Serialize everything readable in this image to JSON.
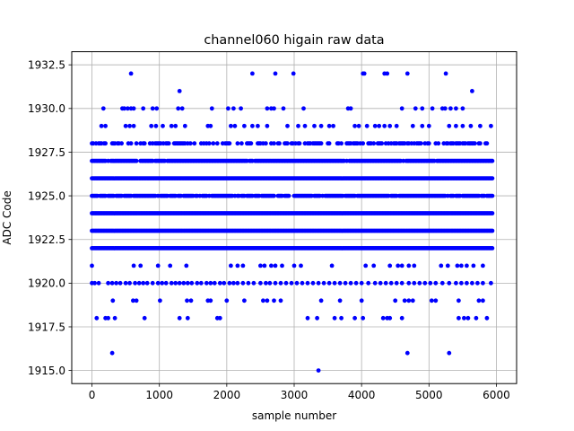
{
  "chart_data": {
    "type": "scatter",
    "title": "channel060 higain raw data",
    "xlabel": "sample number",
    "ylabel": "ADC Code",
    "xlim": [
      -300,
      6300
    ],
    "ylim": [
      1914.25,
      1933.25
    ],
    "xticks": [
      0,
      1000,
      2000,
      3000,
      4000,
      5000,
      6000
    ],
    "xtick_labels": [
      "0",
      "1000",
      "2000",
      "3000",
      "4000",
      "5000",
      "6000"
    ],
    "yticks": [
      1915.0,
      1917.5,
      1920.0,
      1922.5,
      1925.0,
      1927.5,
      1930.0,
      1932.5
    ],
    "ytick_labels": [
      "1915.0",
      "1917.5",
      "1920.0",
      "1922.5",
      "1925.0",
      "1927.5",
      "1930.0",
      "1932.5"
    ],
    "grid": true,
    "color": "#0000ff",
    "marker": "circle",
    "x_range": [
      0,
      5950
    ],
    "note_dense_bands": [
      1922,
      1923,
      1924,
      1925,
      1926,
      1927
    ],
    "dense_series": [
      {
        "y": 1922,
        "density": 1.0
      },
      {
        "y": 1923,
        "density": 1.0
      },
      {
        "y": 1924,
        "density": 1.0
      },
      {
        "y": 1925,
        "density": 0.85
      },
      {
        "y": 1926,
        "density": 1.0
      },
      {
        "y": 1927,
        "density": 0.95
      },
      {
        "y": 1928,
        "density": 0.55
      }
    ],
    "sparse_points": {
      "1932": [
        580,
        2380,
        2720,
        2990,
        4020,
        4040,
        4340,
        4380,
        4680,
        5250
      ],
      "1931": [
        1300,
        5640
      ],
      "1930": [
        170,
        450,
        480,
        530,
        580,
        620,
        760,
        900,
        960,
        1280,
        1340,
        1780,
        2020,
        2100,
        2210,
        2600,
        2660,
        2700,
        2840,
        3140,
        3800,
        3840,
        4600,
        4800,
        4900,
        5050,
        5200,
        5240,
        5320,
        5400,
        5500
      ],
      "1929": [
        140,
        200,
        500,
        560,
        620,
        880,
        950,
        1050,
        1180,
        1240,
        1380,
        1720,
        1760,
        2060,
        2120,
        2260,
        2380,
        2460,
        2600,
        2900,
        3060,
        3160,
        3300,
        3400,
        3520,
        3580,
        3900,
        3960,
        4080,
        4200,
        4260,
        4340,
        4420,
        4520,
        4760,
        4900,
        5000,
        5300,
        5400,
        5500,
        5620,
        5760,
        5920
      ],
      "1921": [
        0,
        620,
        720,
        980,
        1160,
        1400,
        2060,
        2160,
        2240,
        2500,
        2560,
        2660,
        2720,
        2820,
        3000,
        3100,
        3560,
        4060,
        4180,
        4420,
        4540,
        4600,
        4700,
        4780,
        5180,
        5280,
        5420,
        5480,
        5560,
        5660,
        5800
      ],
      "1920": [
        0,
        40,
        100,
        240,
        300,
        360,
        420,
        500,
        560,
        640,
        700,
        760,
        820,
        900,
        980,
        1040,
        1100,
        1180,
        1240,
        1300,
        1360,
        1420,
        1480,
        1560,
        1620,
        1700,
        1760,
        1820,
        1900,
        1960,
        2040,
        2100,
        2160,
        2240,
        2320,
        2400,
        2500,
        2580,
        2640,
        2720,
        2800,
        2880,
        2960,
        3040,
        3120,
        3200,
        3280,
        3360,
        3440,
        3520,
        3600,
        3680,
        3760,
        3840,
        3920,
        4000,
        4100,
        4200,
        4280,
        4360,
        4440,
        4520,
        4600,
        4700,
        4780,
        4860,
        4940,
        5020,
        5100,
        5200,
        5300,
        5400,
        5480,
        5560,
        5640,
        5720,
        5800,
        5920
      ],
      "1919": [
        310,
        610,
        660,
        1010,
        1410,
        1470,
        1720,
        1760,
        2000,
        2260,
        2540,
        2600,
        2700,
        2800,
        3400,
        3680,
        4000,
        4500,
        4640,
        4700,
        4760,
        5040,
        5100,
        5440,
        5740,
        5800
      ],
      "1918": [
        70,
        200,
        240,
        340,
        780,
        1300,
        1420,
        1860,
        1900,
        3200,
        3340,
        3600,
        3700,
        3900,
        4020,
        4320,
        4380,
        4420,
        4600,
        5440,
        5520,
        5580,
        5700,
        5860
      ],
      "1916": [
        300,
        4680,
        5300
      ],
      "1915": [
        3360
      ]
    }
  }
}
